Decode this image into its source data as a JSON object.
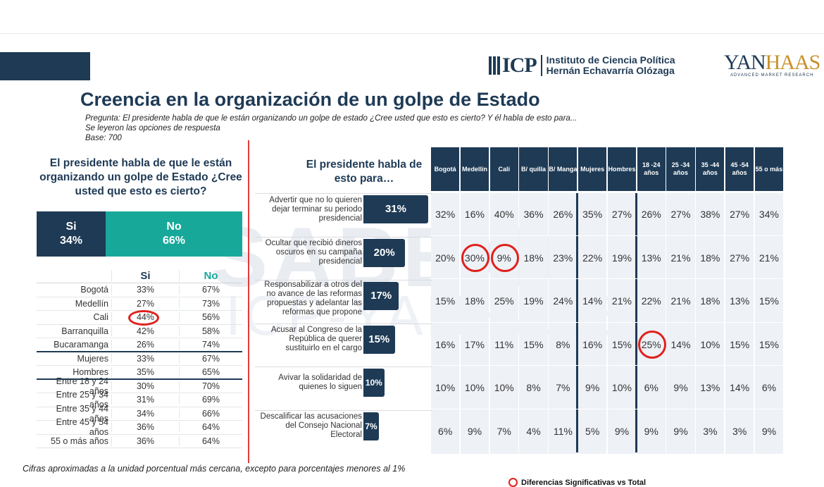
{
  "title": "Creencia en la organización de un golpe de Estado",
  "question": {
    "label": "Pregunta:",
    "text": " El presidente habla de que le están organizando un golpe de estado ¿Cree usted que esto es cierto? Y él habla de esto para...",
    "note": "Se leyeron las opciones de respuesta",
    "base": "Base: 700"
  },
  "logos": {
    "icp_mark": "ICP",
    "icp_line1": "Instituto de Ciencia Política",
    "icp_line2": "Hernán Echavarría Olózaga",
    "yanhaas_a": "YAN",
    "yanhaas_b": "HAAS",
    "yanhaas_sub": "ADVANCED MARKET RESEARCH",
    "watermark_1": "SABEMOS",
    "watermark_2": "ICP-YANHAAS"
  },
  "left_panel": {
    "heading": "El presidente habla de que le están organizando un golpe de Estado ¿Cree usted que esto es cierto?",
    "si_label": "Si",
    "si_value": "34%",
    "no_label": "No",
    "no_value": "66%",
    "table_header_si": "Si",
    "table_header_no": "No",
    "rows": [
      {
        "label": "Bogotá",
        "si": "33%",
        "no": "67%"
      },
      {
        "label": "Medellín",
        "si": "27%",
        "no": "73%"
      },
      {
        "label": "Cali",
        "si": "44%",
        "no": "56%"
      },
      {
        "label": "Barranquilla",
        "si": "42%",
        "no": "58%"
      },
      {
        "label": "Bucaramanga",
        "si": "26%",
        "no": "74%"
      },
      {
        "label": "Mujeres",
        "si": "33%",
        "no": "67%"
      },
      {
        "label": "Hombres",
        "si": "35%",
        "no": "65%"
      },
      {
        "label": "Entre 18 y 24 años",
        "si": "30%",
        "no": "70%"
      },
      {
        "label": "Entre 25 y 34 años",
        "si": "31%",
        "no": "69%"
      },
      {
        "label": "Entre 35 y 44 años",
        "si": "34%",
        "no": "66%"
      },
      {
        "label": "Entre 45 y 54 años",
        "si": "36%",
        "no": "64%"
      },
      {
        "label": "55 o más años",
        "si": "36%",
        "no": "64%"
      }
    ],
    "footnote": "Cifras aproximadas a la unidad porcentual más cercana, excepto para porcentajes menores al 1%"
  },
  "right_panel": {
    "heading": "El presidente habla de esto para…",
    "columns": [
      "Bogotá",
      "Medellín",
      "Cali",
      "B/ quilla",
      "B/ Manga",
      "Mujeres",
      "Hombres",
      "18 -24 años",
      "25 -34 años",
      "35 -44 años",
      "45 -54 años",
      "55 o más"
    ],
    "options": [
      {
        "label": "Advertir que no lo quieren dejar terminar su periodo presidencial",
        "total": "31%",
        "total_value": 31,
        "values": [
          "32%",
          "16%",
          "40%",
          "36%",
          "26%",
          "35%",
          "27%",
          "26%",
          "27%",
          "38%",
          "27%",
          "34%"
        ]
      },
      {
        "label": "Ocultar que recibió dineros oscuros en su campaña presidencial",
        "total": "20%",
        "total_value": 20,
        "values": [
          "20%",
          "30%",
          "9%",
          "18%",
          "23%",
          "22%",
          "19%",
          "13%",
          "21%",
          "18%",
          "27%",
          "21%"
        ]
      },
      {
        "label": "Responsabilizar a otros del no avance de las reformas propuestas y adelantar las reformas que propone",
        "total": "17%",
        "total_value": 17,
        "values": [
          "15%",
          "18%",
          "25%",
          "19%",
          "24%",
          "14%",
          "21%",
          "22%",
          "21%",
          "18%",
          "13%",
          "15%"
        ]
      },
      {
        "label": "Acusar al Congreso de la República de querer sustituirlo en el cargo",
        "total": "15%",
        "total_value": 15,
        "values": [
          "16%",
          "17%",
          "11%",
          "15%",
          "8%",
          "16%",
          "15%",
          "25%",
          "14%",
          "10%",
          "15%",
          "15%"
        ]
      },
      {
        "label": "Avivar la solidaridad de quienes lo siguen",
        "total": "10%",
        "total_value": 10,
        "values": [
          "10%",
          "10%",
          "10%",
          "8%",
          "7%",
          "9%",
          "10%",
          "6%",
          "9%",
          "13%",
          "14%",
          "6%"
        ]
      },
      {
        "label": "Descalificar las acusaciones del Consejo Nacional Electoral",
        "total": "7%",
        "total_value": 7,
        "values": [
          "6%",
          "9%",
          "7%",
          "4%",
          "11%",
          "5%",
          "9%",
          "9%",
          "9%",
          "3%",
          "3%",
          "9%"
        ]
      }
    ],
    "legend": "Diferencias Significativas vs Total"
  },
  "colors": {
    "navy": "#1e3a55",
    "teal": "#18a89a",
    "highlight": "#e0201c"
  }
}
